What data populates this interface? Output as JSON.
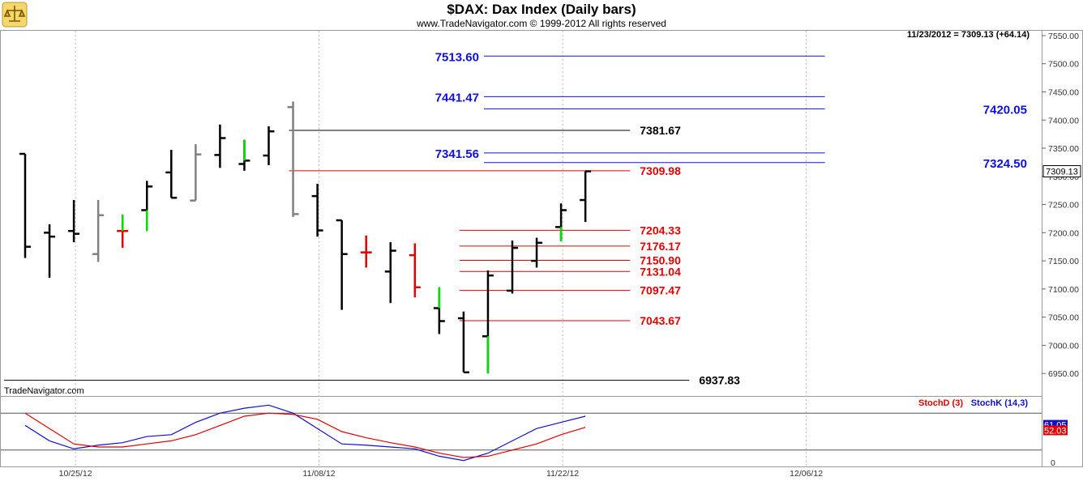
{
  "header": {
    "title": "$DAX:  Dax Index  (Daily bars)",
    "copyright": "www.TradeNavigator.com © 1999-2012 All rights reserved",
    "last_quote": "11/23/2012 = 7309.13 (+64.14)",
    "watermark": "TradeNavigator.com",
    "logo_icon": "trade-navigator-logo-icon"
  },
  "colors": {
    "up_bar": "#000000",
    "down_bar": "#000000",
    "gray_bar": "#808080",
    "green": "#00dd00",
    "red_bar": "#e00000",
    "blue_level": "#1010dd",
    "red_level": "#e00000",
    "black_level": "#000000",
    "stochd": "#e00000",
    "stochk": "#1010cc"
  },
  "chart_data": [
    {
      "type": "ohlc",
      "title": "$DAX:  Dax Index  (Daily bars)",
      "ylim": [
        6910,
        7560
      ],
      "y_ticks": [
        "7550.00",
        "7500.00",
        "7450.00",
        "7400.00",
        "7350.00",
        "7300.00",
        "7250.00",
        "7200.00",
        "7150.00",
        "7100.00",
        "7050.00",
        "7000.00",
        "6950.00"
      ],
      "x_ticks": [
        {
          "label": "10/25/12",
          "index": 2
        },
        {
          "label": "11/08/12",
          "index": 12
        },
        {
          "label": "11/22/12",
          "index": 22
        },
        {
          "label": "12/06/12",
          "index": 32
        }
      ],
      "last_price_tag": "7309.13",
      "bars": [
        {
          "date": "10/23",
          "open": 7340,
          "high": 7340,
          "low": 7155,
          "close": 7175,
          "color": "black"
        },
        {
          "date": "10/24",
          "open": 7200,
          "high": 7215,
          "low": 7120,
          "close": 7193,
          "color": "black"
        },
        {
          "date": "10/25",
          "open": 7203,
          "high": 7258,
          "low": 7183,
          "close": 7198,
          "color": "black"
        },
        {
          "date": "10/26",
          "open": 7162,
          "high": 7258,
          "low": 7148,
          "close": 7231,
          "color": "gray"
        },
        {
          "date": "10/29",
          "open": 7203,
          "high": 7232,
          "low": 7173,
          "close": 7203,
          "color": "red",
          "green_high": 7232
        },
        {
          "date": "10/30",
          "open": 7240,
          "high": 7292,
          "low": 7203,
          "close": 7282,
          "color": "black",
          "green_low": 7240
        },
        {
          "date": "10/31",
          "open": 7307,
          "high": 7347,
          "low": 7262,
          "close": 7262,
          "color": "black"
        },
        {
          "date": "11/01",
          "open": 7257,
          "high": 7357,
          "low": 7257,
          "close": 7339,
          "color": "gray"
        },
        {
          "date": "11/02",
          "open": 7338,
          "high": 7392,
          "low": 7315,
          "close": 7368,
          "color": "black"
        },
        {
          "date": "11/05",
          "open": 7322,
          "high": 7365,
          "low": 7310,
          "close": 7328,
          "color": "black",
          "green_high": 7365
        },
        {
          "date": "11/06",
          "open": 7337,
          "high": 7389,
          "low": 7320,
          "close": 7380,
          "color": "black"
        },
        {
          "date": "11/07",
          "open": 7423,
          "high": 7433,
          "low": 7228,
          "close": 7233,
          "color": "gray"
        },
        {
          "date": "11/08",
          "open": 7265,
          "high": 7287,
          "low": 7193,
          "close": 7204,
          "color": "black"
        },
        {
          "date": "11/09",
          "open": 7222,
          "high": 7222,
          "low": 7063,
          "close": 7162,
          "color": "black"
        },
        {
          "date": "11/12",
          "open": 7165,
          "high": 7195,
          "low": 7138,
          "close": 7165,
          "color": "red"
        },
        {
          "date": "11/13",
          "open": 7131,
          "high": 7183,
          "low": 7075,
          "close": 7168,
          "color": "black"
        },
        {
          "date": "11/14",
          "open": 7160,
          "high": 7181,
          "low": 7085,
          "close": 7103,
          "color": "red"
        },
        {
          "date": "11/15",
          "open": 7066,
          "high": 7103,
          "low": 7020,
          "close": 7043,
          "color": "black",
          "green_high": 7103
        },
        {
          "date": "11/16",
          "open": 7048,
          "high": 7060,
          "low": 6952,
          "close": 6952,
          "color": "black"
        },
        {
          "date": "11/19",
          "open": 7016,
          "high": 7133,
          "low": 6950,
          "close": 7124,
          "color": "black",
          "green_low": 7006
        },
        {
          "date": "11/20",
          "open": 7097,
          "high": 7186,
          "low": 7092,
          "close": 7173,
          "color": "black"
        },
        {
          "date": "11/21",
          "open": 7150,
          "high": 7191,
          "low": 7138,
          "close": 7182,
          "color": "black"
        },
        {
          "date": "11/22",
          "open": 7210,
          "high": 7252,
          "low": 7185,
          "close": 7240,
          "color": "black",
          "green_low": 7200
        },
        {
          "date": "11/23",
          "open": 7258,
          "high": 7309,
          "low": 7219,
          "close": 7309,
          "color": "black"
        }
      ],
      "levels": [
        {
          "value": 7513.6,
          "label": "7513.60",
          "color": "blue",
          "from": 19,
          "to": 33,
          "label_side": "left"
        },
        {
          "value": 7441.47,
          "label": "7441.47",
          "color": "blue",
          "from": 19,
          "to": 33,
          "label_side": "left"
        },
        {
          "value": 7420.05,
          "label": "7420.05",
          "color": "blue",
          "from": 19,
          "to": 33,
          "label_side": "right"
        },
        {
          "value": 7381.67,
          "label": "7381.67",
          "color": "black",
          "from": 11,
          "to": 25,
          "label_side": "right"
        },
        {
          "value": 7341.56,
          "label": "7341.56",
          "color": "blue",
          "from": 19,
          "to": 33,
          "label_side": "left"
        },
        {
          "value": 7324.5,
          "label": "7324.50",
          "color": "blue",
          "from": 19,
          "to": 33,
          "label_side": "right"
        },
        {
          "value": 7309.98,
          "label": "7309.98",
          "color": "red",
          "from": 11,
          "to": 25,
          "label_side": "right"
        },
        {
          "value": 7204.33,
          "label": "7204.33",
          "color": "red",
          "from": 18,
          "to": 25,
          "label_side": "right"
        },
        {
          "value": 7176.17,
          "label": "7176.17",
          "color": "red",
          "from": 18,
          "to": 25,
          "label_side": "right"
        },
        {
          "value": 7150.9,
          "label": "7150.90",
          "color": "red",
          "from": 18,
          "to": 25,
          "label_side": "right"
        },
        {
          "value": 7131.04,
          "label": "7131.04",
          "color": "red",
          "from": 18,
          "to": 25,
          "label_side": "right"
        },
        {
          "value": 7097.47,
          "label": "7097.47",
          "color": "red",
          "from": 18,
          "to": 25,
          "label_side": "right"
        },
        {
          "value": 7043.67,
          "label": "7043.67",
          "color": "red",
          "from": 18,
          "to": 25,
          "label_side": "right"
        },
        {
          "value": 6937.83,
          "label": "6937.83",
          "color": "black",
          "from": -1,
          "to": 27,
          "label_side": "right"
        }
      ]
    },
    {
      "type": "line",
      "ylim": [
        0,
        100
      ],
      "y_ticks": [
        "0"
      ],
      "reference_lines": [
        80,
        20
      ],
      "series": [
        {
          "name": "StochD (3)",
          "color": "red",
          "values": [
            80,
            55,
            30,
            25,
            25,
            30,
            35,
            45,
            60,
            75,
            80,
            78,
            70,
            50,
            40,
            32,
            25,
            15,
            8,
            10,
            20,
            30,
            45,
            57
          ]
        },
        {
          "name": "StochK (14,3)",
          "color": "blue",
          "values": [
            60,
            35,
            22,
            28,
            32,
            42,
            45,
            65,
            80,
            88,
            93,
            80,
            55,
            30,
            28,
            25,
            22,
            10,
            3,
            15,
            35,
            55,
            65,
            75
          ]
        }
      ],
      "value_tags": [
        "61.05",
        "52.03"
      ]
    }
  ]
}
